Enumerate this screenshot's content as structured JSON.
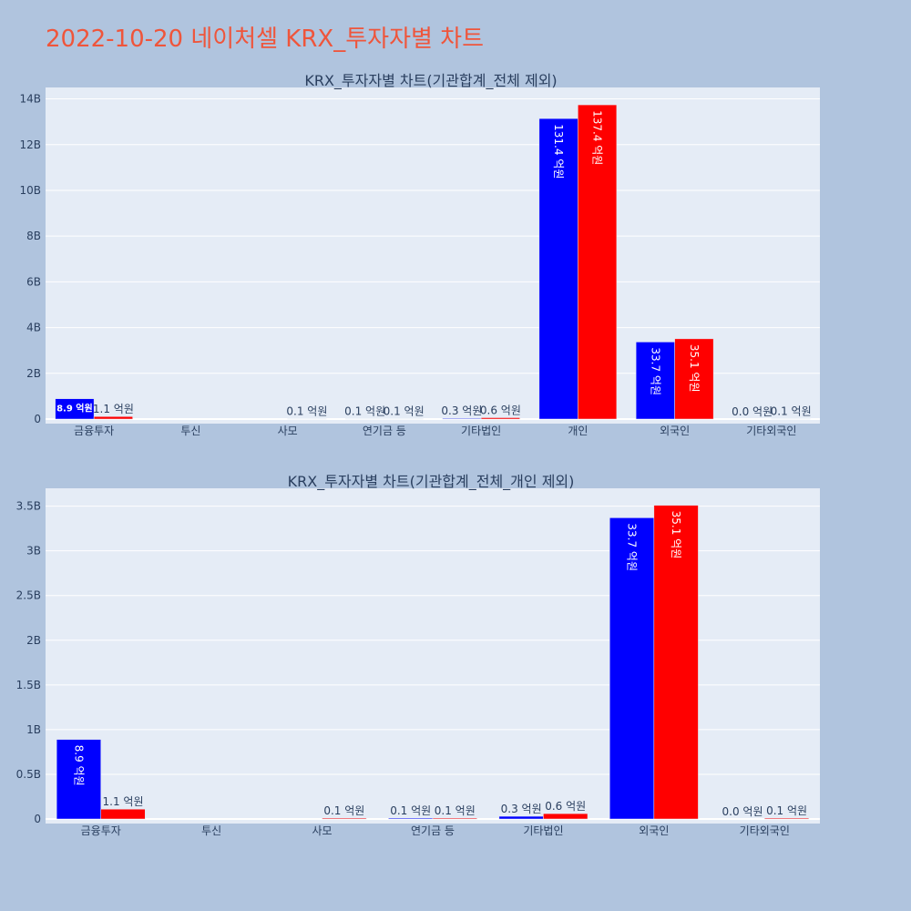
{
  "page": {
    "title": "2022-10-20 네이처셀 KRX_투자자별 차트",
    "title_color": "#ef553b",
    "background": "#b0c4de",
    "plot_background": "#e5ecf6"
  },
  "chart_data": [
    {
      "type": "bar",
      "title": "KRX_투자자별 차트(기관합계_전체 제외)",
      "categories": [
        "금융투자",
        "투신",
        "사모",
        "연기금 등",
        "기타법인",
        "개인",
        "외국인",
        "기타외국인"
      ],
      "yticks": [
        "0",
        "2B",
        "4B",
        "6B",
        "8B",
        "10B",
        "12B",
        "14B"
      ],
      "ylim": [
        0,
        14500000000
      ],
      "grid": true,
      "series": [
        {
          "color": "#0000ff",
          "values": [
            890000000,
            0,
            0,
            10000000,
            30000000,
            13140000000,
            3370000000,
            0
          ],
          "labels": [
            "8.9 억원",
            "",
            "",
            "0.1 억원",
            "0.3 억원",
            "131.4 억원",
            "33.7 억원",
            "0.0 억원"
          ]
        },
        {
          "color": "#ff0000",
          "values": [
            110000000,
            0,
            10000000,
            10000000,
            60000000,
            13740000000,
            3510000000,
            10000000
          ],
          "labels": [
            "1.1 억원",
            "",
            "0.1 억원",
            "0.1 억원",
            "0.6 억원",
            "137.4 억원",
            "35.1 억원",
            "0.1 억원"
          ]
        }
      ]
    },
    {
      "type": "bar",
      "title": "KRX_투자자별 차트(기관합계_전체_개인 제외)",
      "categories": [
        "금융투자",
        "투신",
        "사모",
        "연기금 등",
        "기타법인",
        "외국인",
        "기타외국인"
      ],
      "yticks": [
        "0",
        "0.5B",
        "1B",
        "1.5B",
        "2B",
        "2.5B",
        "3B",
        "3.5B"
      ],
      "ylim": [
        0,
        3700000000
      ],
      "grid": true,
      "series": [
        {
          "color": "#0000ff",
          "values": [
            890000000,
            0,
            0,
            10000000,
            30000000,
            3370000000,
            0
          ],
          "labels": [
            "8.9 억원",
            "",
            "",
            "0.1 억원",
            "0.3 억원",
            "33.7 억원",
            "0.0 억원"
          ]
        },
        {
          "color": "#ff0000",
          "values": [
            110000000,
            0,
            10000000,
            10000000,
            60000000,
            3510000000,
            10000000
          ],
          "labels": [
            "1.1 억원",
            "",
            "0.1 억원",
            "0.1 억원",
            "0.6 억원",
            "35.1 억원",
            "0.1 억원"
          ]
        }
      ]
    }
  ]
}
